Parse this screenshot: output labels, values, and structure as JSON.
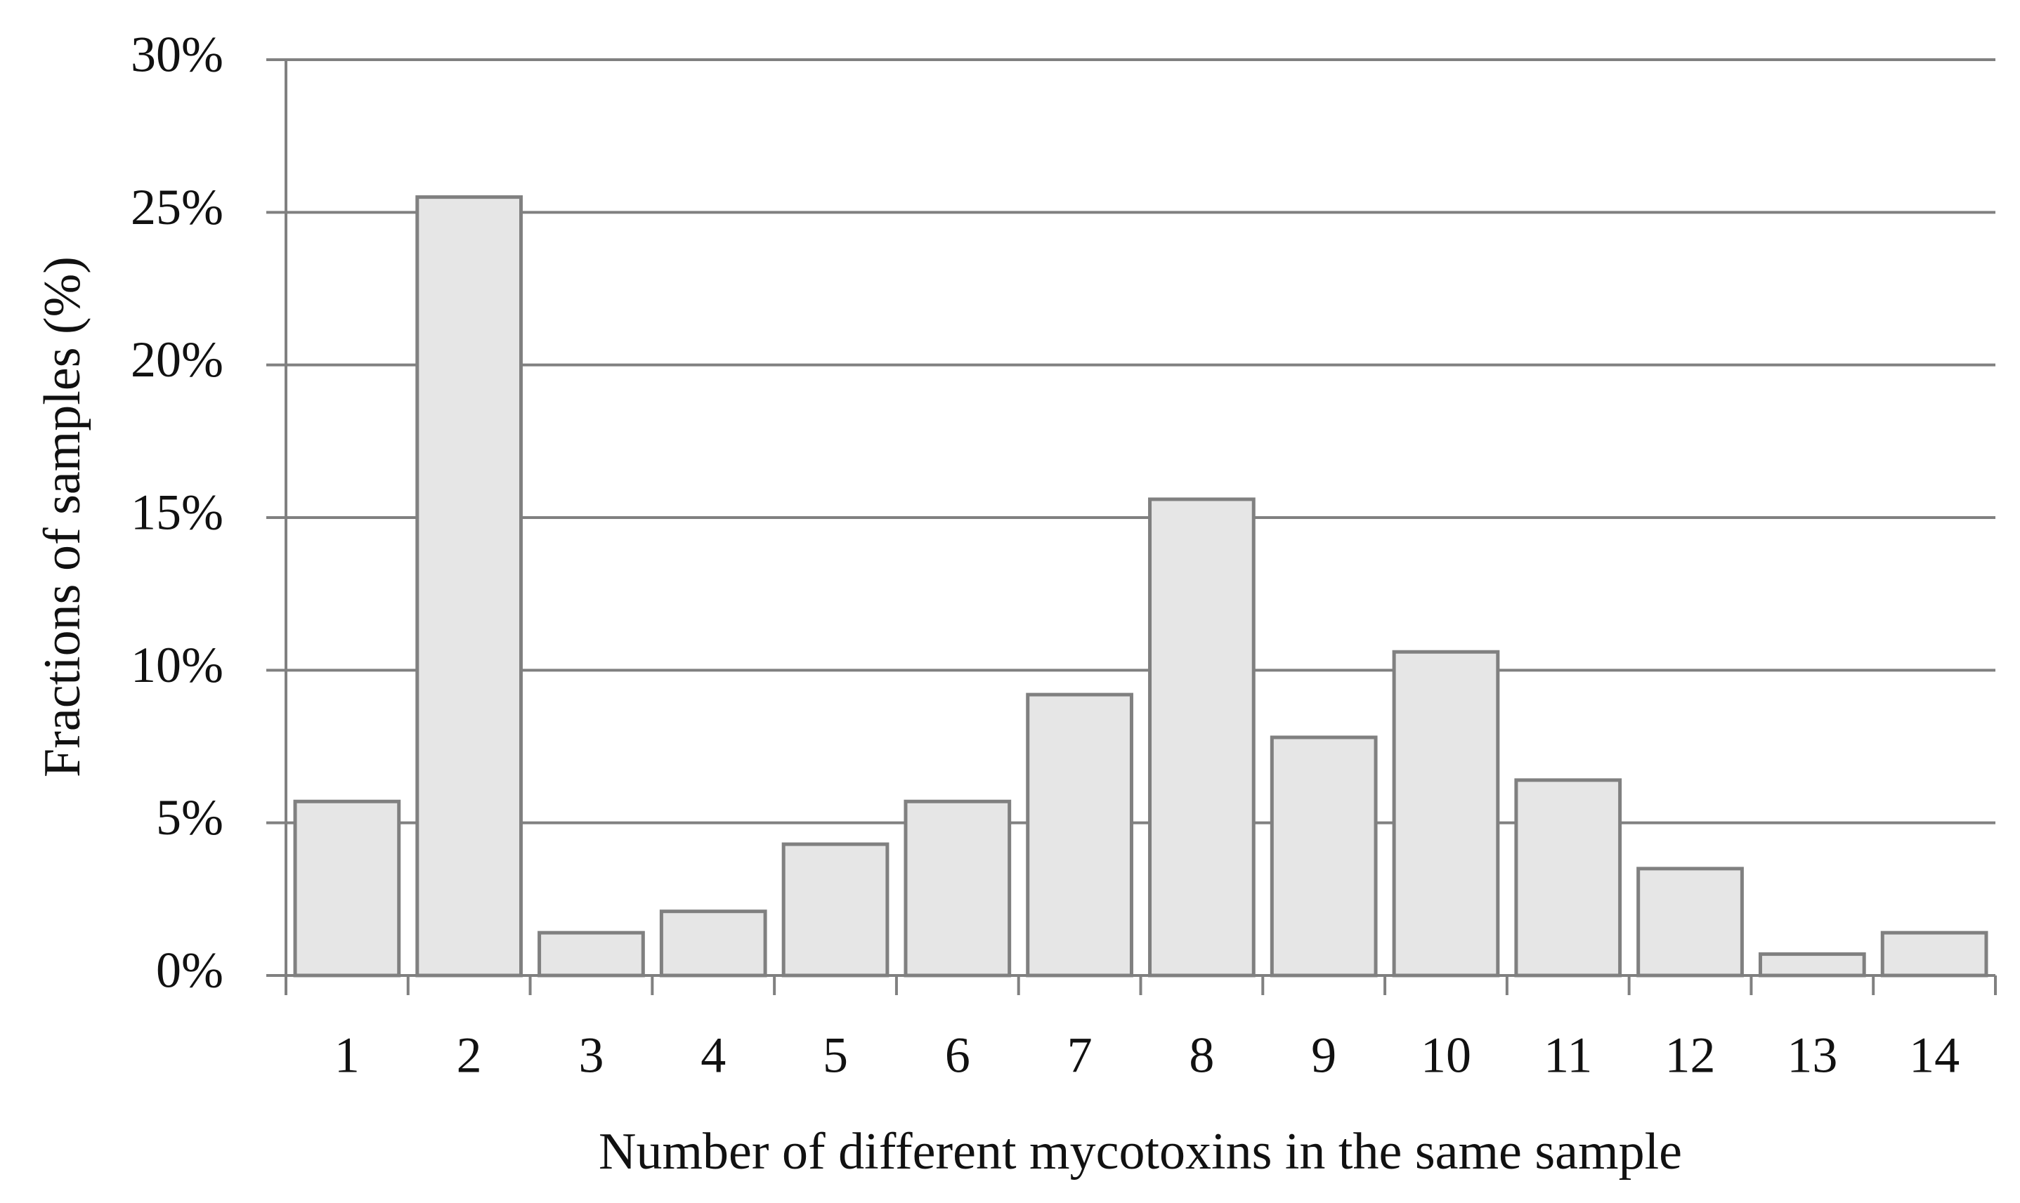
{
  "chart_data": {
    "type": "bar",
    "x_label": "Number of different mycotoxins in the same sample",
    "y_label": "Fractions of samples (%)",
    "categories": [
      "1",
      "2",
      "3",
      "4",
      "5",
      "6",
      "7",
      "8",
      "9",
      "10",
      "11",
      "12",
      "13",
      "14"
    ],
    "values": [
      5.7,
      25.5,
      1.4,
      2.1,
      4.3,
      5.7,
      9.2,
      15.6,
      7.8,
      10.6,
      6.4,
      3.5,
      0.7,
      1.4
    ],
    "color": "#e6e6e6",
    "edge_color": "#808080",
    "ylim": [
      0,
      30
    ],
    "yticks": [
      {
        "value": 0,
        "label": "0%"
      },
      {
        "value": 5,
        "label": "5%"
      },
      {
        "value": 10,
        "label": "10%"
      },
      {
        "value": 15,
        "label": "15%"
      },
      {
        "value": 20,
        "label": "20%"
      },
      {
        "value": 25,
        "label": "25%"
      },
      {
        "value": 30,
        "label": "30%"
      }
    ],
    "grid": true
  }
}
